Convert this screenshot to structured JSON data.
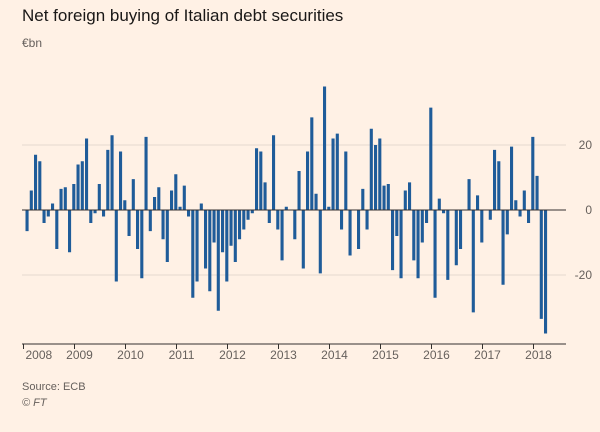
{
  "title": "Net foreign buying of Italian debt securities",
  "unit_label": "€bn",
  "source": "Source: ECB",
  "credit": "© FT",
  "colors": {
    "background": "#fff1e5",
    "bar": "#1f5c99",
    "grid": "#e6d9ce",
    "zero": "#33302e"
  },
  "chart_data": {
    "type": "bar",
    "ylabel": "€bn",
    "ylim": [
      -38,
      40
    ],
    "yticks": [
      20,
      0,
      -20
    ],
    "grid": true,
    "x_tick_labels": [
      "2008",
      "2009",
      "2010",
      "2011",
      "2012",
      "2013",
      "2014",
      "2015",
      "2016",
      "2017",
      "2018"
    ],
    "period": "monthly, Jan 2008 – May 2018",
    "values": [
      -6.5,
      6,
      17,
      15,
      -4,
      -2,
      2,
      -12,
      6.5,
      7,
      -13,
      8,
      14,
      15,
      22,
      -4,
      -1,
      8,
      -2,
      18.5,
      23,
      -22,
      18,
      3,
      -8,
      9.5,
      -12,
      -21,
      22.5,
      -6.5,
      4,
      7,
      -9,
      -16,
      6,
      11,
      1,
      7.5,
      -2,
      -27,
      -22,
      2,
      -18,
      -25,
      -10,
      -31,
      -13,
      -22,
      -11,
      -16,
      -9,
      -6,
      -3,
      -1,
      19,
      18,
      8.5,
      -4,
      23,
      -6,
      -15.5,
      1,
      0,
      -9,
      12,
      -18,
      18,
      28.5,
      5,
      -19.5,
      38,
      1,
      22,
      23.5,
      -6,
      18,
      -14,
      0,
      -12,
      6.5,
      -6,
      25,
      20,
      22,
      7.5,
      8,
      -18.5,
      -8,
      -21,
      6,
      8.5,
      -15.5,
      -21,
      -10,
      -4,
      31.5,
      -27,
      3.5,
      -1,
      -21.5,
      0,
      -17,
      -12,
      0,
      9.5,
      -31.5,
      4.5,
      -10,
      0,
      -3,
      18.5,
      15,
      -23,
      -7.5,
      19.5,
      3,
      -2,
      6,
      -4,
      22.5,
      10.5,
      -33.5,
      -38
    ]
  }
}
